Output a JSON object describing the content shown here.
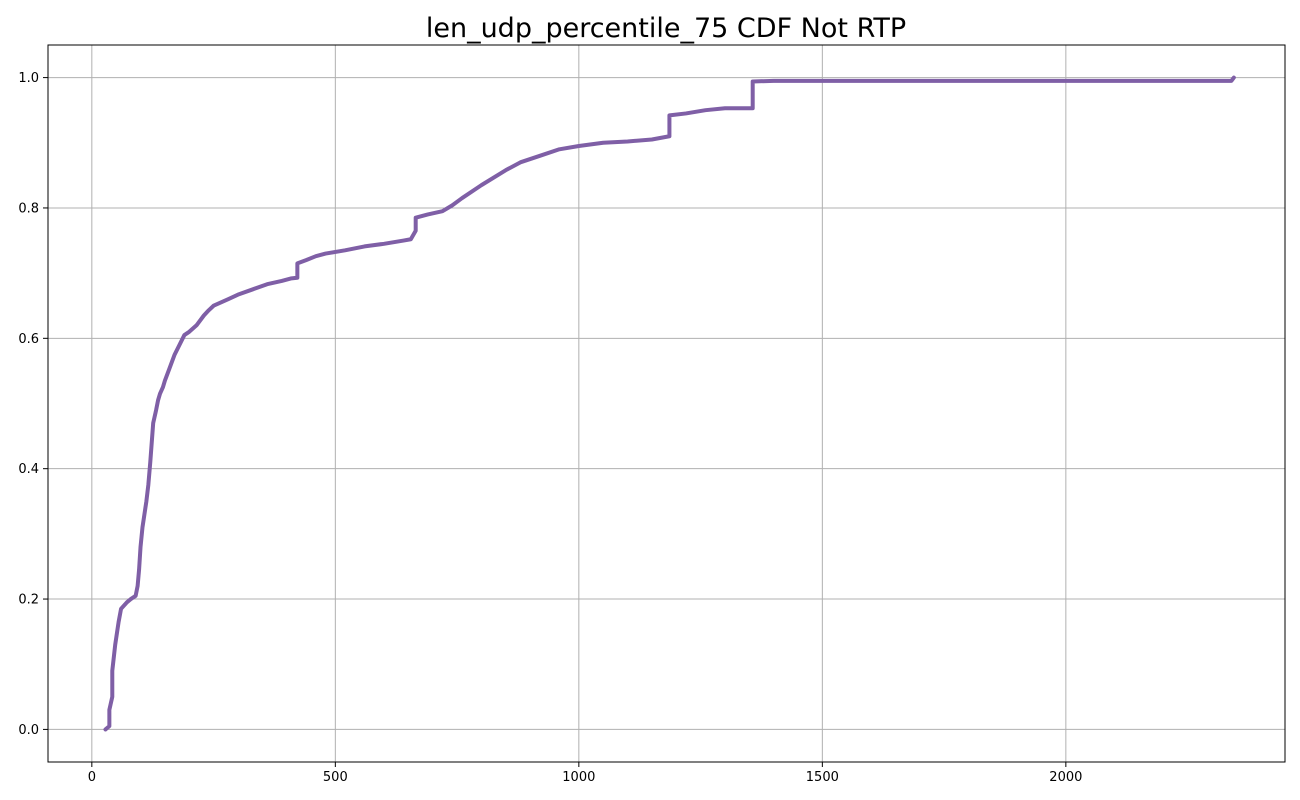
{
  "chart_data": {
    "type": "line",
    "title": "len_udp_percentile_75 CDF Not RTP",
    "xlabel": "",
    "ylabel": "",
    "xlim": [
      -90,
      2450
    ],
    "ylim": [
      -0.05,
      1.05
    ],
    "x_ticks": [
      0,
      500,
      1000,
      1500,
      2000
    ],
    "x_tick_labels": [
      "0",
      "500",
      "1000",
      "1500",
      "2000"
    ],
    "y_ticks": [
      0.0,
      0.2,
      0.4,
      0.6,
      0.8,
      1.0
    ],
    "y_tick_labels": [
      "0.0",
      "0.2",
      "0.4",
      "0.6",
      "0.8",
      "1.0"
    ],
    "grid": true,
    "legend": "none",
    "series": [
      {
        "color": "#7f5fa6",
        "x": [
          28,
          36,
          36,
          42,
          42,
          48,
          55,
          60,
          66,
          72,
          80,
          90,
          94,
          97,
          100,
          104,
          108,
          112,
          116,
          120,
          126,
          132,
          136,
          140,
          143,
          146,
          150,
          160,
          170,
          180,
          190,
          200,
          215,
          230,
          240,
          250,
          265,
          280,
          300,
          330,
          360,
          390,
          410,
          422,
          422,
          440,
          460,
          480,
          520,
          560,
          600,
          640,
          655,
          665,
          665,
          690,
          720,
          740,
          760,
          800,
          850,
          880,
          920,
          960,
          1000,
          1050,
          1100,
          1150,
          1186,
          1186,
          1220,
          1260,
          1300,
          1357,
          1357,
          1400,
          2340,
          2345
        ],
        "y": [
          0.0,
          0.005,
          0.03,
          0.05,
          0.09,
          0.13,
          0.165,
          0.185,
          0.19,
          0.195,
          0.2,
          0.205,
          0.22,
          0.245,
          0.28,
          0.31,
          0.33,
          0.35,
          0.375,
          0.41,
          0.47,
          0.49,
          0.505,
          0.515,
          0.52,
          0.525,
          0.535,
          0.555,
          0.575,
          0.59,
          0.605,
          0.61,
          0.62,
          0.635,
          0.643,
          0.65,
          0.655,
          0.66,
          0.667,
          0.675,
          0.683,
          0.688,
          0.692,
          0.693,
          0.715,
          0.72,
          0.726,
          0.73,
          0.735,
          0.741,
          0.745,
          0.75,
          0.752,
          0.765,
          0.785,
          0.79,
          0.795,
          0.804,
          0.815,
          0.835,
          0.858,
          0.87,
          0.88,
          0.89,
          0.895,
          0.9,
          0.902,
          0.905,
          0.91,
          0.942,
          0.945,
          0.95,
          0.953,
          0.953,
          0.994,
          0.995,
          0.995,
          1.0
        ]
      }
    ]
  }
}
